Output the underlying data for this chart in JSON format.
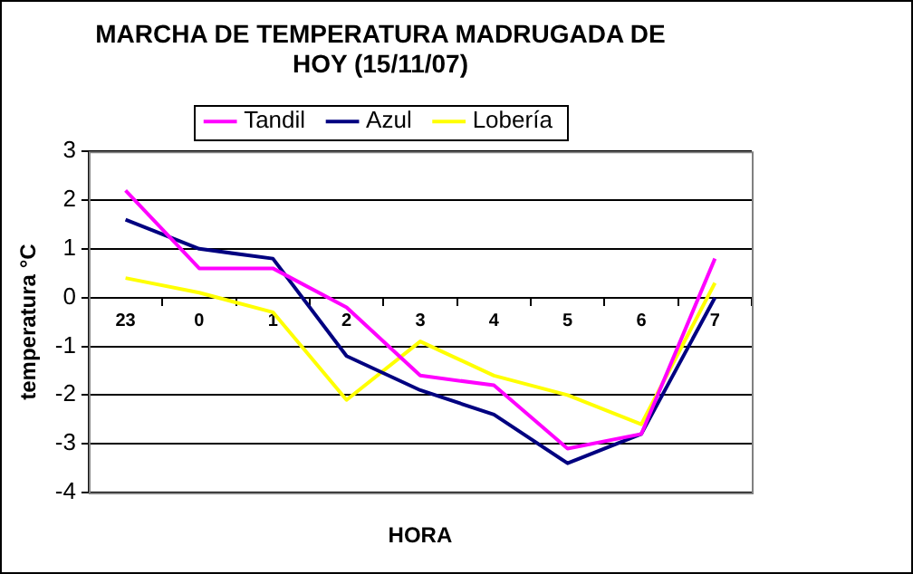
{
  "chart_data": {
    "type": "line",
    "title": "MARCHA DE TEMPERATURA MADRUGADA DE HOY (15/11/07)",
    "xlabel": "HORA",
    "ylabel": "temperatura °C",
    "categories": [
      "23",
      "0",
      "1",
      "2",
      "3",
      "4",
      "5",
      "6",
      "7"
    ],
    "series": [
      {
        "name": "Tandil",
        "color": "#ff00ff",
        "values": [
          2.2,
          0.6,
          0.6,
          -0.2,
          -1.6,
          -1.8,
          -3.1,
          -2.8,
          0.8
        ]
      },
      {
        "name": "Azul",
        "color": "#000080",
        "values": [
          1.6,
          1.0,
          0.8,
          -1.2,
          -1.9,
          -2.4,
          -3.4,
          -2.8,
          0.0
        ]
      },
      {
        "name": "Lobería",
        "color": "#ffff00",
        "values": [
          0.4,
          0.1,
          -0.3,
          -2.1,
          -0.9,
          -1.6,
          -2.0,
          -2.6,
          0.3
        ]
      }
    ],
    "ylim": [
      -4,
      3
    ],
    "yticks": [
      -4,
      -3,
      -2,
      -1,
      0,
      1,
      2,
      3
    ],
    "grid": "y",
    "legend": "top",
    "marker": "none",
    "line_style": "solid"
  }
}
